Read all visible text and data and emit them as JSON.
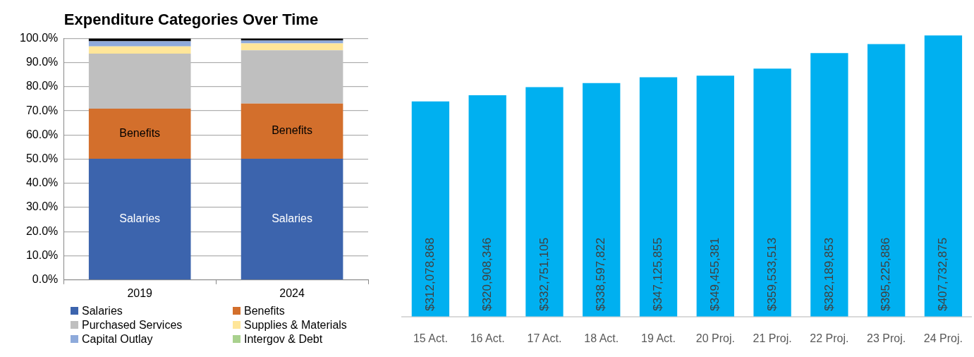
{
  "chart_data": [
    {
      "type": "bar",
      "title": "Expenditure Categories Over Time",
      "categories": [
        "2019",
        "2024"
      ],
      "stacked": true,
      "ylim": [
        0,
        100
      ],
      "yticks": [
        {
          "value": 0,
          "label": "0.0%"
        },
        {
          "value": 10,
          "label": "10.0%"
        },
        {
          "value": 20,
          "label": "20.0%"
        },
        {
          "value": 30,
          "label": "30.0%"
        },
        {
          "value": 40,
          "label": "40.0%"
        },
        {
          "value": 50,
          "label": "50.0%"
        },
        {
          "value": 60,
          "label": "60.0%"
        },
        {
          "value": 70,
          "label": "70.0%"
        },
        {
          "value": 80,
          "label": "80.0%"
        },
        {
          "value": 90,
          "label": "90.0%"
        },
        {
          "value": 100,
          "label": "100.0%"
        }
      ],
      "grid": "y",
      "legend": "bottom",
      "series": [
        {
          "name": "Salaries",
          "color": "#3c64ad",
          "values": [
            50.2,
            50.2
          ]
        },
        {
          "name": "Benefits",
          "color": "#d36f2c",
          "values": [
            20.7,
            22.8
          ]
        },
        {
          "name": "Purchased Services",
          "color": "#bfbfbf",
          "values": [
            22.8,
            22.1
          ]
        },
        {
          "name": "Supplies & Materials",
          "color": "#ffe699",
          "values": [
            3.0,
            2.8
          ]
        },
        {
          "name": "Capital Outlay",
          "color": "#8eaadb",
          "values": [
            2.1,
            1.2
          ]
        },
        {
          "name": "Intergov & Debt",
          "color": "#a9d18e",
          "values": [
            0,
            0
          ]
        },
        {
          "color": "#000000",
          "values": [
            1.2,
            0.9
          ]
        }
      ],
      "annotations": [
        "Salaries",
        "Salaries",
        "Benefits",
        "Benefits"
      ]
    },
    {
      "type": "bar",
      "categories": [
        "15 Act.",
        "16 Act.",
        "17 Act.",
        "18 Act.",
        "19 Act.",
        "20 Proj.",
        "21 Proj.",
        "22 Proj.",
        "23 Proj.",
        "24 Proj."
      ],
      "values": [
        312078868,
        320908346,
        332751105,
        338597822,
        347125855,
        349455381,
        359533513,
        382189853,
        395225886,
        407732875
      ],
      "value_labels": [
        "$312,078,868",
        "$320,908,346",
        "$332,751,105",
        "$338,597,822",
        "$347,125,855",
        "$349,455,381",
        "$359,533,513",
        "$382,189,853",
        "$395,225,886",
        "$407,732,875"
      ],
      "color": "#00b0f0",
      "ylim": [
        0,
        410000000
      ],
      "tick_labels": "x",
      "legend": false
    }
  ]
}
